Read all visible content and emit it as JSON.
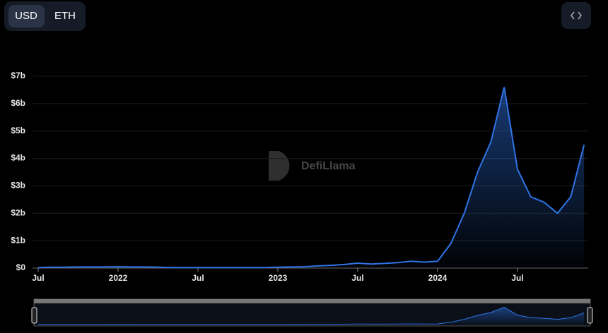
{
  "controls": {
    "currency_options": [
      "USD",
      "ETH"
    ]
  },
  "chart_data": {
    "type": "area",
    "watermark": "DefiLlama",
    "color": "#2f74e6",
    "grid": true,
    "x": [
      "2021-07",
      "2021-08",
      "2021-09",
      "2021-10",
      "2021-11",
      "2021-12",
      "2022-01",
      "2022-02",
      "2022-03",
      "2022-04",
      "2022-05",
      "2022-06",
      "2022-07",
      "2022-08",
      "2022-09",
      "2022-10",
      "2022-11",
      "2022-12",
      "2023-01",
      "2023-02",
      "2023-03",
      "2023-04",
      "2023-05",
      "2023-06",
      "2023-07",
      "2023-08",
      "2023-09",
      "2023-10",
      "2023-11",
      "2023-12",
      "2024-01",
      "2024-02",
      "2024-03",
      "2024-04",
      "2024-05",
      "2024-06",
      "2024-07",
      "2024-08",
      "2024-09",
      "2024-10",
      "2024-11",
      "2024-12"
    ],
    "values": [
      0.02,
      0.03,
      0.03,
      0.04,
      0.04,
      0.04,
      0.05,
      0.04,
      0.04,
      0.03,
      0.02,
      0.02,
      0.02,
      0.02,
      0.02,
      0.02,
      0.02,
      0.02,
      0.03,
      0.04,
      0.05,
      0.08,
      0.1,
      0.13,
      0.18,
      0.15,
      0.17,
      0.2,
      0.25,
      0.22,
      0.25,
      0.9,
      2.0,
      3.5,
      4.6,
      6.6,
      3.6,
      2.6,
      2.4,
      2.0,
      2.6,
      4.5
    ],
    "ylim": [
      0,
      7
    ],
    "yticks": [
      {
        "value": 0,
        "label": "$0"
      },
      {
        "value": 1,
        "label": "$1b"
      },
      {
        "value": 2,
        "label": "$2b"
      },
      {
        "value": 3,
        "label": "$3b"
      },
      {
        "value": 4,
        "label": "$4b"
      },
      {
        "value": 5,
        "label": "$5b"
      },
      {
        "value": 6,
        "label": "$6b"
      },
      {
        "value": 7,
        "label": "$7b"
      }
    ],
    "xticks": [
      {
        "value": "2021-07",
        "label": "Jul"
      },
      {
        "value": "2022-01",
        "label": "2022"
      },
      {
        "value": "2022-07",
        "label": "Jul"
      },
      {
        "value": "2023-01",
        "label": "2023"
      },
      {
        "value": "2023-07",
        "label": "Jul"
      },
      {
        "value": "2024-01",
        "label": "2024"
      },
      {
        "value": "2024-07",
        "label": "Jul"
      }
    ]
  }
}
